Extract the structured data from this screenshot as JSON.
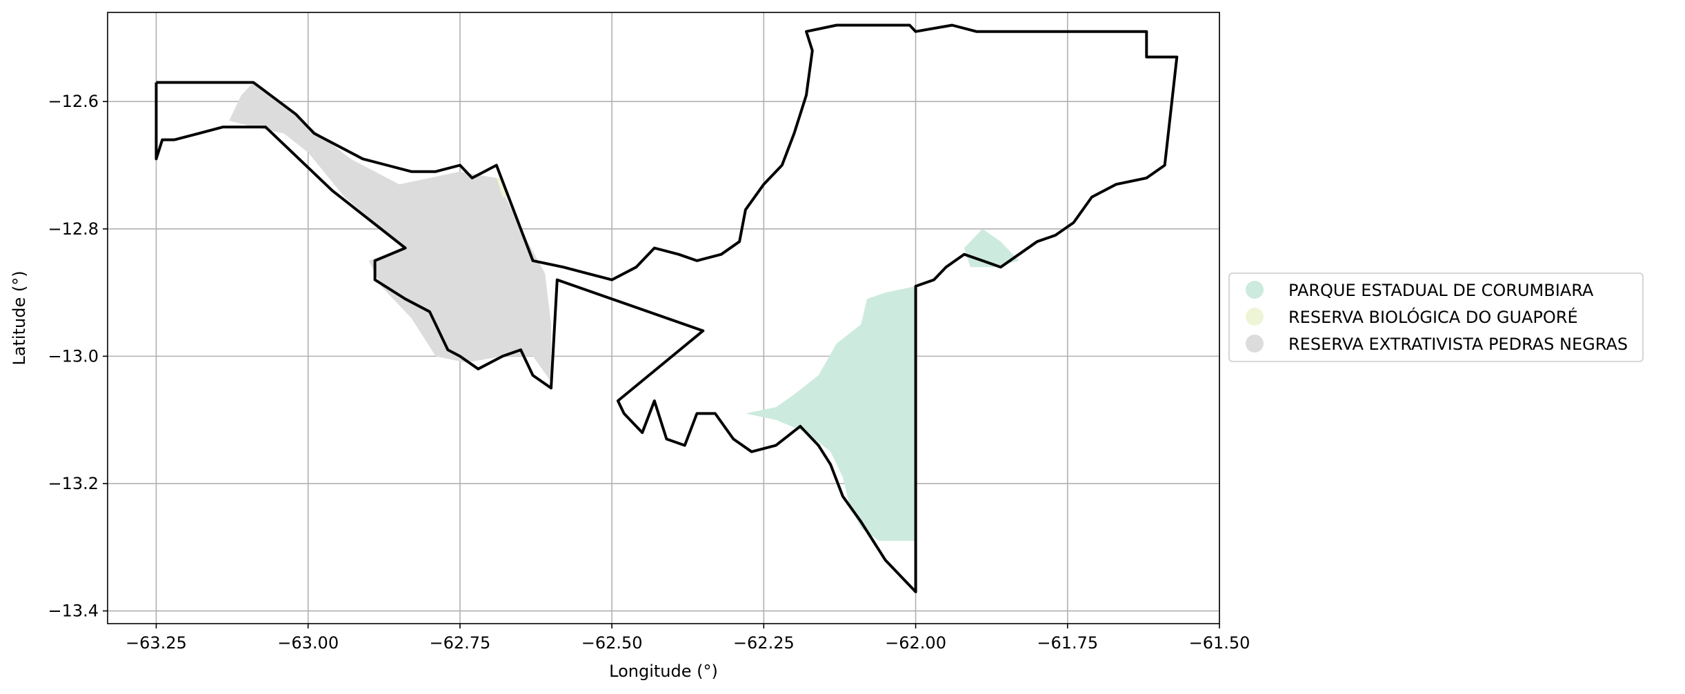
{
  "chart_data": {
    "type": "map",
    "xlabel": "Longitude (°)",
    "ylabel": "Latitude (°)",
    "xlim": [
      -63.33,
      -61.5
    ],
    "ylim": [
      -13.42,
      -12.46
    ],
    "xticks": [
      -63.25,
      -63.0,
      -62.75,
      -62.5,
      -62.25,
      -62.0,
      -61.75,
      -61.5
    ],
    "xtick_labels": [
      "−63.25",
      "−63.00",
      "−62.75",
      "−62.50",
      "−62.25",
      "−62.00",
      "−61.75",
      "−61.50"
    ],
    "yticks": [
      -12.6,
      -12.8,
      -13.0,
      -13.2,
      -13.4
    ],
    "ytick_labels": [
      "−12.6",
      "−12.8",
      "−13.0",
      "−13.2",
      "−13.4"
    ],
    "grid": true,
    "legend_position": "right-outside",
    "legend": [
      {
        "label": "PARQUE ESTADUAL DE CORUMBIARA",
        "color": "#cdeade"
      },
      {
        "label": "RESERVA BIOLÓGICA DO GUAPORÉ",
        "color": "#eef5d6"
      },
      {
        "label": "RESERVA EXTRATIVISTA PEDRAS NEGRAS",
        "color": "#dcdcdc"
      }
    ],
    "regions": [
      {
        "name": "RESERVA EXTRATIVISTA PEDRAS NEGRAS",
        "color": "#dcdcdc",
        "coords": [
          [
            -63.13,
            -12.63
          ],
          [
            -63.11,
            -12.59
          ],
          [
            -63.09,
            -12.57
          ],
          [
            -63.01,
            -12.63
          ],
          [
            -62.93,
            -12.69
          ],
          [
            -62.85,
            -12.73
          ],
          [
            -62.75,
            -12.71
          ],
          [
            -62.69,
            -12.72
          ],
          [
            -62.65,
            -12.8
          ],
          [
            -62.61,
            -12.87
          ],
          [
            -62.6,
            -12.95
          ],
          [
            -62.6,
            -13.04
          ],
          [
            -62.63,
            -13.0
          ],
          [
            -62.68,
            -13.0
          ],
          [
            -62.74,
            -13.01
          ],
          [
            -62.79,
            -13.0
          ],
          [
            -62.83,
            -12.94
          ],
          [
            -62.88,
            -12.89
          ],
          [
            -62.9,
            -12.85
          ],
          [
            -62.84,
            -12.83
          ],
          [
            -62.94,
            -12.75
          ],
          [
            -63.0,
            -12.68
          ],
          [
            -63.04,
            -12.65
          ],
          [
            -63.09,
            -12.64
          ]
        ]
      },
      {
        "name": "RESERVA BIOLÓGICA DO GUAPORÉ",
        "color": "#eef5d6",
        "coords": [
          [
            -62.69,
            -12.72
          ],
          [
            -62.68,
            -12.72
          ],
          [
            -62.67,
            -12.75
          ],
          [
            -62.68,
            -12.75
          ]
        ]
      },
      {
        "name": "PARQUE ESTADUAL DE CORUMBIARA",
        "color": "#cdeade",
        "coords": [
          [
            -62.0,
            -12.89
          ],
          [
            -62.05,
            -12.9
          ],
          [
            -62.08,
            -12.91
          ],
          [
            -62.09,
            -12.95
          ],
          [
            -62.13,
            -12.98
          ],
          [
            -62.16,
            -13.03
          ],
          [
            -62.2,
            -13.06
          ],
          [
            -62.23,
            -13.08
          ],
          [
            -62.28,
            -13.09
          ],
          [
            -62.23,
            -13.1
          ],
          [
            -62.18,
            -13.12
          ],
          [
            -62.14,
            -13.15
          ],
          [
            -62.12,
            -13.19
          ],
          [
            -62.11,
            -13.23
          ],
          [
            -62.09,
            -13.27
          ],
          [
            -62.06,
            -13.29
          ],
          [
            -62.02,
            -13.29
          ],
          [
            -62.0,
            -13.29
          ]
        ]
      },
      {
        "name": "PARQUE ESTADUAL DE CORUMBIARA",
        "color": "#cdeade",
        "coords": [
          [
            -61.92,
            -12.83
          ],
          [
            -61.89,
            -12.8
          ],
          [
            -61.86,
            -12.82
          ],
          [
            -61.83,
            -12.85
          ],
          [
            -61.87,
            -12.86
          ],
          [
            -61.91,
            -12.86
          ]
        ]
      }
    ],
    "boundaries": [
      {
        "name": "west",
        "coords": [
          [
            -63.25,
            -12.57
          ],
          [
            -63.09,
            -12.57
          ],
          [
            -63.02,
            -12.62
          ],
          [
            -62.99,
            -12.65
          ],
          [
            -62.95,
            -12.67
          ],
          [
            -62.91,
            -12.69
          ],
          [
            -62.87,
            -12.7
          ],
          [
            -62.83,
            -12.71
          ],
          [
            -62.79,
            -12.71
          ],
          [
            -62.75,
            -12.7
          ],
          [
            -62.73,
            -12.72
          ],
          [
            -62.69,
            -12.7
          ],
          [
            -62.63,
            -12.85
          ],
          [
            -62.58,
            -12.86
          ],
          [
            -62.54,
            -12.87
          ],
          [
            -62.5,
            -12.88
          ],
          [
            -62.46,
            -12.86
          ],
          [
            -62.43,
            -12.83
          ],
          [
            -62.39,
            -12.84
          ],
          [
            -62.36,
            -12.85
          ],
          [
            -62.32,
            -12.84
          ],
          [
            -62.29,
            -12.82
          ],
          [
            -62.28,
            -12.77
          ],
          [
            -62.25,
            -12.73
          ],
          [
            -62.22,
            -12.7
          ],
          [
            -62.2,
            -12.65
          ],
          [
            -62.18,
            -12.59
          ],
          [
            -62.17,
            -12.52
          ],
          [
            -62.18,
            -12.49
          ],
          [
            -62.13,
            -12.48
          ],
          [
            -62.01,
            -12.48
          ],
          [
            -62.0,
            -12.49
          ],
          [
            -61.94,
            -12.48
          ],
          [
            -61.9,
            -12.49
          ],
          [
            -61.62,
            -12.49
          ],
          [
            -61.62,
            -12.53
          ],
          [
            -61.59,
            -12.53
          ],
          [
            -61.57,
            -12.53
          ],
          [
            -61.59,
            -12.7
          ],
          [
            -61.62,
            -12.72
          ],
          [
            -61.67,
            -12.73
          ],
          [
            -61.71,
            -12.75
          ],
          [
            -61.74,
            -12.79
          ],
          [
            -61.77,
            -12.81
          ],
          [
            -61.8,
            -12.82
          ],
          [
            -61.83,
            -12.84
          ],
          [
            -61.86,
            -12.86
          ],
          [
            -61.89,
            -12.85
          ],
          [
            -61.92,
            -12.84
          ],
          [
            -61.95,
            -12.86
          ],
          [
            -61.97,
            -12.88
          ],
          [
            -62.0,
            -12.89
          ],
          [
            -62.0,
            -13.37
          ],
          [
            -62.02,
            -13.35
          ],
          [
            -62.05,
            -13.32
          ],
          [
            -62.07,
            -13.29
          ],
          [
            -62.09,
            -13.26
          ],
          [
            -62.12,
            -13.22
          ],
          [
            -62.14,
            -13.17
          ],
          [
            -62.16,
            -13.14
          ],
          [
            -62.19,
            -13.11
          ],
          [
            -62.23,
            -13.14
          ],
          [
            -62.27,
            -13.15
          ],
          [
            -62.3,
            -13.13
          ],
          [
            -62.33,
            -13.09
          ],
          [
            -62.36,
            -13.09
          ],
          [
            -62.38,
            -13.14
          ],
          [
            -62.41,
            -13.13
          ],
          [
            -62.43,
            -13.07
          ],
          [
            -62.45,
            -13.12
          ],
          [
            -62.48,
            -13.09
          ],
          [
            -62.49,
            -13.07
          ],
          [
            -62.35,
            -12.96
          ],
          [
            -62.59,
            -12.88
          ],
          [
            -62.6,
            -13.05
          ],
          [
            -62.63,
            -13.03
          ],
          [
            -62.65,
            -12.99
          ],
          [
            -62.68,
            -13.0
          ],
          [
            -62.72,
            -13.02
          ],
          [
            -62.75,
            -13.0
          ],
          [
            -62.77,
            -12.99
          ],
          [
            -62.8,
            -12.93
          ],
          [
            -62.84,
            -12.91
          ],
          [
            -62.89,
            -12.88
          ],
          [
            -62.89,
            -12.85
          ],
          [
            -62.84,
            -12.83
          ],
          [
            -62.96,
            -12.74
          ],
          [
            -63.07,
            -12.64
          ],
          [
            -63.11,
            -12.64
          ],
          [
            -63.14,
            -12.64
          ],
          [
            -63.18,
            -12.65
          ],
          [
            -63.22,
            -12.66
          ],
          [
            -63.24,
            -12.66
          ],
          [
            -63.25,
            -12.69
          ],
          [
            -63.25,
            -12.57
          ]
        ]
      },
      {
        "name": "divider",
        "coords": [
          [
            -62.0,
            -12.89
          ],
          [
            -62.0,
            -13.37
          ]
        ]
      }
    ]
  }
}
